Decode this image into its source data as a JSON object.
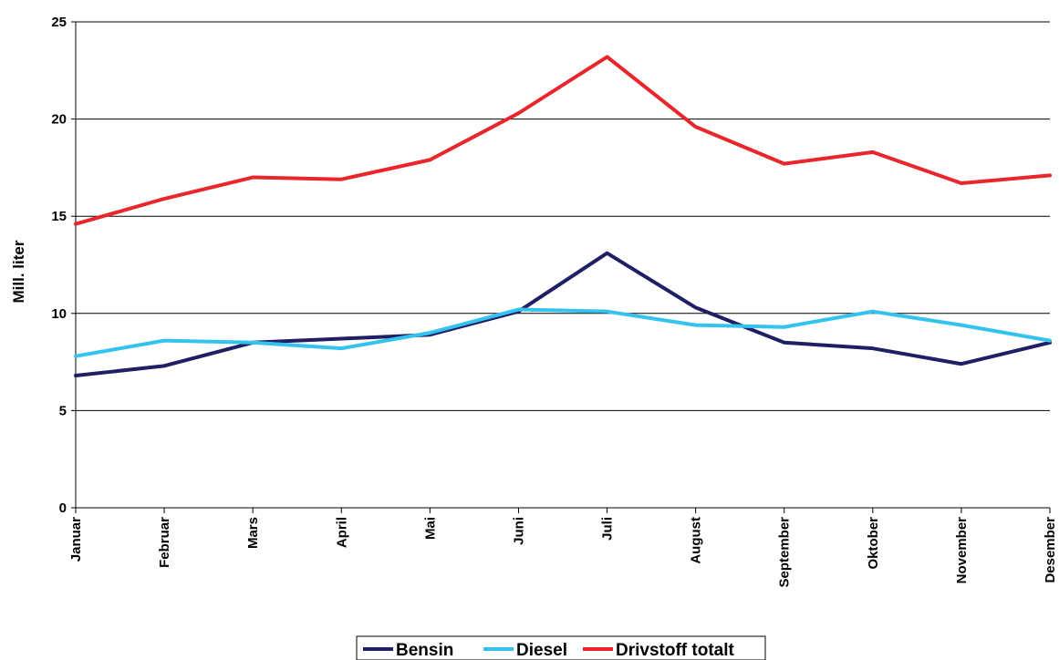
{
  "chart_data": {
    "type": "line",
    "ylabel": "Mill. liter",
    "ylim": [
      0,
      25
    ],
    "yticks": [
      0,
      5,
      10,
      15,
      20,
      25
    ],
    "grid": true,
    "legend_position": "bottom",
    "categories": [
      "Januar",
      "Februar",
      "Mars",
      "April",
      "Mai",
      "Juni",
      "Juli",
      "August",
      "September",
      "Oktober",
      "November",
      "Desember"
    ],
    "series": [
      {
        "name": "Bensin",
        "color": "#1f1f66",
        "values": [
          6.8,
          7.3,
          8.5,
          8.7,
          8.9,
          10.1,
          13.1,
          10.3,
          8.5,
          8.2,
          7.4,
          8.5
        ]
      },
      {
        "name": "Diesel",
        "color": "#33c3ee",
        "values": [
          7.8,
          8.6,
          8.5,
          8.2,
          9.0,
          10.2,
          10.1,
          9.4,
          9.3,
          10.1,
          9.4,
          8.6
        ]
      },
      {
        "name": "Drivstoff totalt",
        "color": "#e8262b",
        "values": [
          14.6,
          15.9,
          17.0,
          16.9,
          17.9,
          20.3,
          23.2,
          19.6,
          17.7,
          18.3,
          16.7,
          17.1
        ]
      }
    ]
  }
}
